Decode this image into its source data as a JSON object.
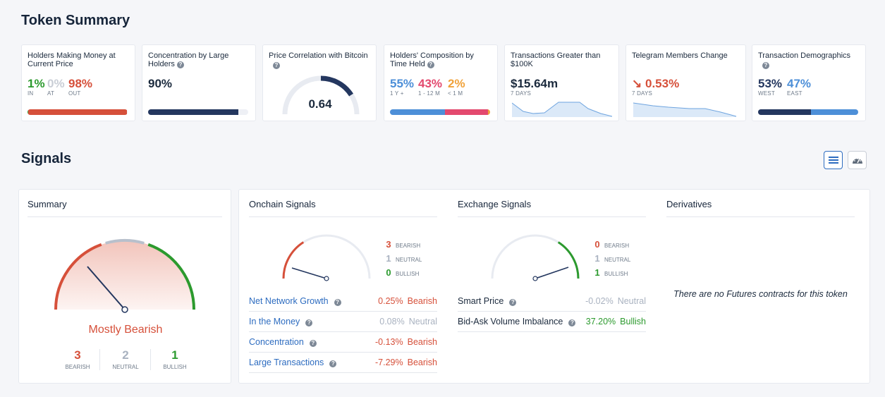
{
  "token_summary": {
    "title": "Token Summary",
    "cards": {
      "holders_money": {
        "title": "Holders Making Money at Current Price",
        "in_value": "1%",
        "in_label": "IN",
        "at_value": "0%",
        "at_label": "AT",
        "out_value": "98%",
        "out_label": "OUT",
        "bar": {
          "in": 0.01,
          "at": 0.0,
          "out": 0.98
        }
      },
      "concentration": {
        "title": "Concentration by Large Holders",
        "value": "90%",
        "bar_fill": 0.9
      },
      "price_corr": {
        "title": "Price Correlation with Bitcoin",
        "value": "0.64",
        "gauge_fill": 0.64
      },
      "composition": {
        "title": "Holders' Composition by Time Held",
        "v1": "55%",
        "l1": "1 Y +",
        "v2": "43%",
        "l2": "1 - 12 M",
        "v3": "2%",
        "l3": "< 1 M",
        "bar": [
          0.55,
          0.43,
          0.02
        ]
      },
      "large_tx": {
        "title": "Transactions Greater than $100K",
        "value": "$15.64m",
        "period": "7 DAYS"
      },
      "telegram": {
        "title": "Telegram Members Change",
        "arrow": "↘",
        "value": "0.53%",
        "period": "7 DAYS"
      },
      "demographics": {
        "title": "Transaction Demographics",
        "west_value": "53%",
        "west_label": "WEST",
        "east_value": "47%",
        "east_label": "EAST",
        "bar": [
          0.53,
          0.47
        ]
      }
    }
  },
  "signals": {
    "title": "Signals",
    "summary": {
      "title": "Summary",
      "verdict": "Mostly Bearish",
      "bearish_count": "3",
      "bearish_label": "BEARISH",
      "neutral_count": "2",
      "neutral_label": "NEUTRAL",
      "bullish_count": "1",
      "bullish_label": "BULLISH"
    },
    "onchain": {
      "title": "Onchain Signals",
      "bearish": "3",
      "neutral": "1",
      "bullish": "0",
      "bearish_label": "BEARISH",
      "neutral_label": "NEUTRAL",
      "bullish_label": "BULLISH",
      "rows": [
        {
          "name": "Net Network Growth",
          "pct": "0.25%",
          "signal": "Bearish"
        },
        {
          "name": "In the Money",
          "pct": "0.08%",
          "signal": "Neutral"
        },
        {
          "name": "Concentration",
          "pct": "-0.13%",
          "signal": "Bearish"
        },
        {
          "name": "Large Transactions",
          "pct": "-7.29%",
          "signal": "Bearish"
        }
      ]
    },
    "exchange": {
      "title": "Exchange Signals",
      "bearish": "0",
      "neutral": "1",
      "bullish": "1",
      "bearish_label": "BEARISH",
      "neutral_label": "NEUTRAL",
      "bullish_label": "BULLISH",
      "rows": [
        {
          "name": "Smart Price",
          "pct": "-0.02%",
          "signal": "Neutral"
        },
        {
          "name": "Bid-Ask Volume Imbalance",
          "pct": "37.20%",
          "signal": "Bullish"
        }
      ]
    },
    "derivatives": {
      "title": "Derivatives",
      "empty_message": "There are no Futures contracts for this token"
    }
  },
  "icons": {
    "help": "?",
    "list_view": "list-icon",
    "gauge_view": "gauge-icon"
  },
  "colors": {
    "bearish": "#d6503a",
    "neutral": "#a9b2c0",
    "bullish": "#2c9a2e",
    "navy": "#24375f",
    "blue": "#4d8fd8",
    "pink": "#e3496e",
    "orange": "#f0a23a",
    "link": "#2d6cc0"
  }
}
